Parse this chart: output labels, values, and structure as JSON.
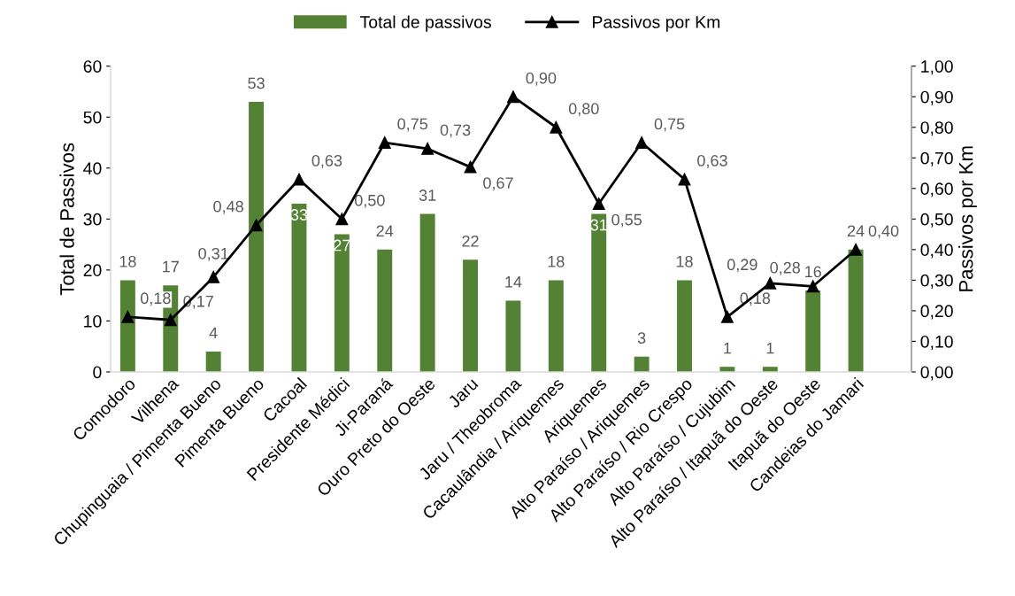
{
  "chart_data": {
    "type": "bar",
    "categories": [
      "Comodoro",
      "Vilhena",
      "Chupinguaia / Pimenta Bueno",
      "Pimenta Bueno",
      "Cacoal",
      "Presidente Médici",
      "Ji-Paraná",
      "Ouro Preto do Oeste",
      "Jaru",
      "Jaru / Theobroma",
      "Cacaulândia / Ariquemes",
      "Ariquemes",
      "Alto Paraíso / Ariquemes",
      "Alto Paraíso / Rio Crespo",
      "Alto Paraíso / Cujubim",
      "Alto Paraíso / Itapuã do Oeste",
      "Itapuã do Oeste",
      "Candeias do Jamari"
    ],
    "ylabel": "Total de Passivos",
    "y2label": "Passivos por Km",
    "ylim": [
      0,
      60
    ],
    "yticks": [
      0,
      10,
      20,
      30,
      40,
      50,
      60
    ],
    "y2lim": [
      0,
      1
    ],
    "y2ticks": [
      {
        "value": 0,
        "label": "0,00"
      },
      {
        "value": 0.1,
        "label": "0,10"
      },
      {
        "value": 0.2,
        "label": "0,20"
      },
      {
        "value": 0.3,
        "label": "0,30"
      },
      {
        "value": 0.4,
        "label": "0,40"
      },
      {
        "value": 0.5,
        "label": "0,50"
      },
      {
        "value": 0.6,
        "label": "0,60"
      },
      {
        "value": 0.7,
        "label": "0,70"
      },
      {
        "value": 0.8,
        "label": "0,80"
      },
      {
        "value": 0.9,
        "label": "0,90"
      },
      {
        "value": 1.0,
        "label": "1,00"
      }
    ],
    "series": [
      {
        "name": "Total de passivos",
        "color": "#548235",
        "values": [
          18,
          17,
          4,
          53,
          33,
          27,
          24,
          31,
          22,
          14,
          18,
          31,
          3,
          18,
          1,
          1,
          16,
          24
        ],
        "value_labels": [
          "18",
          "17",
          "4",
          "53",
          "33",
          "27",
          "24",
          "31",
          "22",
          "14",
          "18",
          "31",
          "3",
          "18",
          "1",
          "1",
          "16",
          "24"
        ]
      },
      {
        "name": "Passivos por Km",
        "type": "line",
        "axis": "y2",
        "color": "#000000",
        "marker": "triangle",
        "values": [
          0.18,
          0.17,
          0.31,
          0.48,
          0.63,
          0.5,
          0.75,
          0.73,
          0.67,
          0.9,
          0.8,
          0.55,
          0.75,
          0.63,
          0.18,
          0.29,
          0.28,
          0.4
        ],
        "value_labels": [
          "0,18",
          "0,17",
          "0,31",
          "0,48",
          "0,63",
          "0,50",
          "0,75",
          "0,73",
          "0,67",
          "0,90",
          "0,80",
          "0,55",
          "0,75",
          "0,63",
          "0,18",
          "0,29",
          "0,28",
          "0,40"
        ]
      }
    ],
    "legend": "top",
    "grid": false
  }
}
